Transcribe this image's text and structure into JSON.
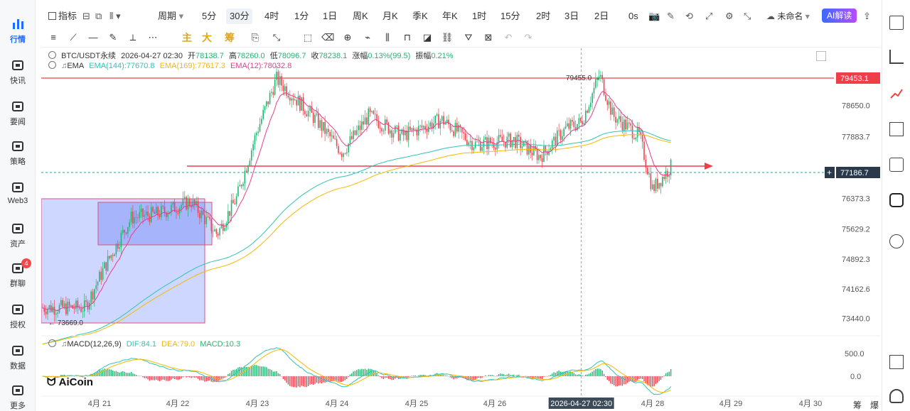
{
  "nav": {
    "items": [
      {
        "label": "行情",
        "icon": "bar-chart-icon",
        "active": true
      },
      {
        "label": "快讯",
        "icon": "news-icon"
      },
      {
        "label": "要闻",
        "icon": "article-icon"
      },
      {
        "label": "策略",
        "icon": "robot-icon"
      },
      {
        "label": "Web3",
        "icon": "web3-icon"
      },
      {
        "label": "资产",
        "icon": "wallet-icon"
      },
      {
        "label": "群聊",
        "icon": "chat-icon",
        "badge": "4"
      },
      {
        "label": "授权",
        "icon": "key-icon"
      },
      {
        "label": "数据",
        "icon": "data-icon"
      },
      {
        "label": "更多",
        "icon": "grid-icon"
      }
    ]
  },
  "toolbar": {
    "indicators": "指标",
    "period": "周期",
    "intervals": [
      "5分",
      "30分",
      "4时",
      "1分",
      "1日",
      "周K",
      "月K",
      "季K",
      "年K",
      "1时",
      "15分",
      "2时",
      "3日",
      "2日"
    ],
    "active_interval": "30分",
    "countdown": "0s",
    "layout_name": "未命名",
    "ai_button": "AI解读"
  },
  "drawbar": {
    "gold_labels": [
      "主",
      "大",
      "筹"
    ]
  },
  "legend": {
    "symbol": "BTC/USDT永续",
    "time": "2026-04-27 02:30",
    "open_label": "开",
    "open": "78138.7",
    "high_label": "高",
    "high": "78260.0",
    "low_label": "低",
    "low": "78096.7",
    "close_label": "收",
    "close": "78238.1",
    "change_label": "涨幅",
    "change": "0.13%(99.5)",
    "amp_label": "振幅",
    "amp": "0.21%",
    "ema_name": "EMA",
    "ema144": "EMA(144):77670.8",
    "ema169": "EMA(169):77617.3",
    "ema12": "EMA(12):78032.8",
    "macd_name": "MACD(12,26,9)",
    "dif": "DIF:84.1",
    "dea": "DEA:79.0",
    "macd": "MACD:10.3"
  },
  "chart_data": {
    "type": "candlestick",
    "symbol": "BTC/USDT永续",
    "interval": "30分",
    "y_ticks": [
      "78650.0",
      "77883.7",
      "76373.3",
      "75629.2",
      "74892.3",
      "74162.6",
      "73440.0"
    ],
    "y_range": [
      73100,
      79700
    ],
    "x_ticks": [
      "4月 21",
      "4月 22",
      "4月 23",
      "4月 24",
      "4月 25",
      "4月 26",
      "4月 28",
      "4月 29",
      "4月 30"
    ],
    "crosshair_time": "2026-04-27 02:30",
    "current_price": "77186.7",
    "high_line_price": "79453.1",
    "max_marker": "79455.0",
    "min_marker": "73669.0",
    "macd_ticks": [
      "500.0",
      "0.0"
    ],
    "colors": {
      "up": "#22b573",
      "down": "#f0424e",
      "ema12": "#e83e8c",
      "ema144": "#2ec4b6",
      "ema169": "#f5b900",
      "dif": "#2ec4b6",
      "dea": "#f5b900"
    },
    "path_keypoints": [
      {
        "x": "4月 20 20:00",
        "y": 73700
      },
      {
        "x": "4月 21 02:00",
        "y": 74700
      },
      {
        "x": "4月 21 10:00",
        "y": 75900
      },
      {
        "x": "4月 21 18:00",
        "y": 76000
      },
      {
        "x": "4月 22 04:00",
        "y": 76300
      },
      {
        "x": "4月 22 12:00",
        "y": 75500
      },
      {
        "x": "4月 22 18:00",
        "y": 76400
      },
      {
        "x": "4月 23 00:00",
        "y": 78000
      },
      {
        "x": "4月 23 06:00",
        "y": 79300
      },
      {
        "x": "4月 23 18:00",
        "y": 78300
      },
      {
        "x": "4月 24 02:00",
        "y": 77500
      },
      {
        "x": "4月 24 10:00",
        "y": 78400
      },
      {
        "x": "4月 24 20:00",
        "y": 77900
      },
      {
        "x": "4月 25 08:00",
        "y": 78300
      },
      {
        "x": "4月 25 18:00",
        "y": 77700
      },
      {
        "x": "4月 26 06:00",
        "y": 77800
      },
      {
        "x": "4月 26 14:00",
        "y": 77400
      },
      {
        "x": "4月 26 22:00",
        "y": 78100
      },
      {
        "x": "4月 27 02:30",
        "y": 78238
      },
      {
        "x": "4月 27 08:00",
        "y": 79400
      },
      {
        "x": "4月 27 12:00",
        "y": 78400
      },
      {
        "x": "4月 27 20:00",
        "y": 77900
      },
      {
        "x": "4月 28 00:00",
        "y": 76600
      },
      {
        "x": "4月 28 06:00",
        "y": 77187
      }
    ]
  },
  "bottom": {
    "brand": "AiCoin",
    "btn1": "筹",
    "btn2": "爆"
  }
}
